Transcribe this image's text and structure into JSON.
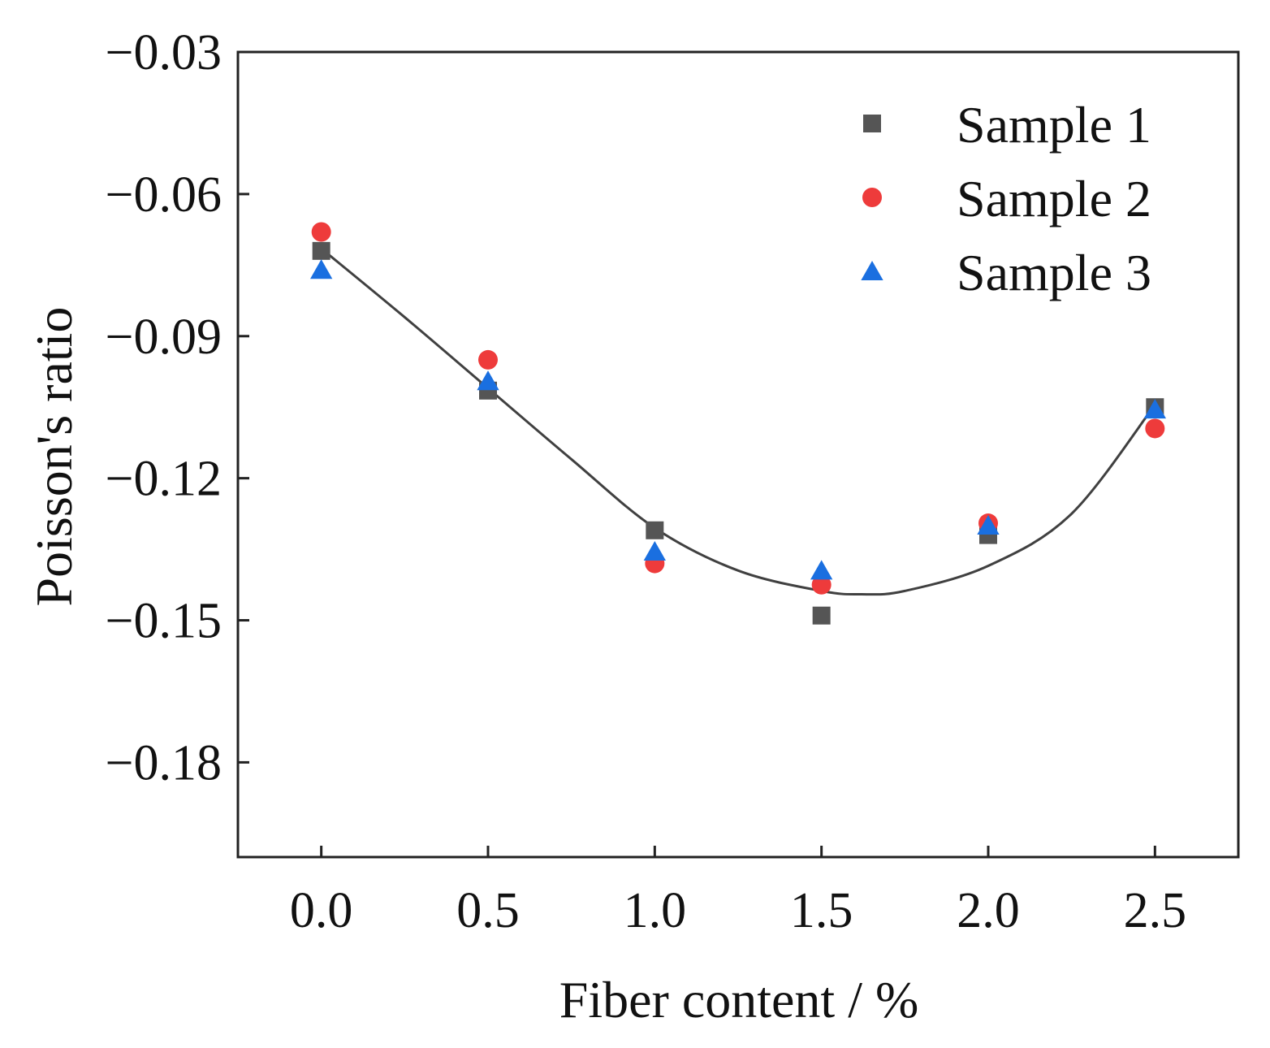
{
  "chart_data": {
    "type": "scatter",
    "title": "",
    "xlabel": "Fiber content / %",
    "ylabel": "Poisson's ratio",
    "xlim": [
      -0.25,
      2.75
    ],
    "ylim": [
      -0.2,
      -0.03
    ],
    "x_ticks": [
      0.0,
      0.5,
      1.0,
      1.5,
      2.0,
      2.5
    ],
    "x_tick_labels": [
      "0.0",
      "0.5",
      "1.0",
      "1.5",
      "2.0",
      "2.5"
    ],
    "y_ticks": [
      -0.03,
      -0.06,
      -0.09,
      -0.12,
      -0.15,
      -0.18
    ],
    "y_tick_labels": [
      "−0.03",
      "−0.06",
      "−0.09",
      "−0.12",
      "−0.15",
      "−0.18"
    ],
    "grid": false,
    "legend_position": "top-right",
    "x": [
      0.0,
      0.5,
      1.0,
      1.5,
      2.0,
      2.5
    ],
    "series": [
      {
        "name": "Sample 1",
        "marker": "square",
        "color": "#555555",
        "values": [
          -0.072,
          -0.1015,
          -0.131,
          -0.149,
          -0.132,
          -0.105
        ]
      },
      {
        "name": "Sample 2",
        "marker": "circle",
        "color": "#ee3b3b",
        "values": [
          -0.068,
          -0.095,
          -0.138,
          -0.1425,
          -0.1295,
          -0.1095
        ]
      },
      {
        "name": "Sample 3",
        "marker": "triangle",
        "color": "#1a6fe0",
        "values": [
          -0.076,
          -0.0995,
          -0.1355,
          -0.1395,
          -0.13,
          -0.1055
        ]
      }
    ],
    "fit_curve": {
      "name": "fit",
      "color": "#404040",
      "x": [
        0.0,
        0.25,
        0.5,
        0.75,
        1.0,
        1.25,
        1.5,
        1.62,
        1.75,
        2.0,
        2.25,
        2.5
      ],
      "y": [
        -0.0715,
        -0.086,
        -0.101,
        -0.116,
        -0.1305,
        -0.1395,
        -0.1438,
        -0.1445,
        -0.1438,
        -0.1385,
        -0.1275,
        -0.1045
      ]
    }
  }
}
